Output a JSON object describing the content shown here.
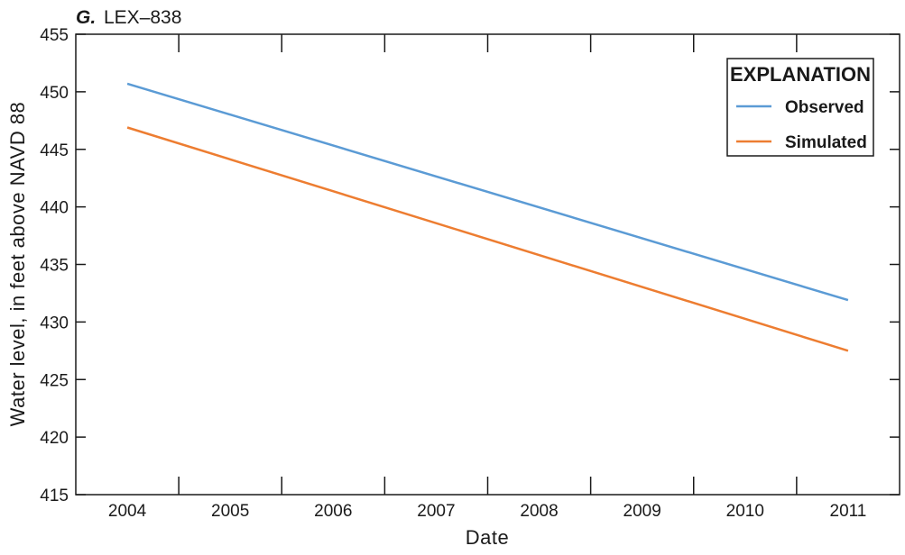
{
  "chart_data": {
    "type": "line",
    "panel_letter": "G.",
    "title": "LEX–838",
    "xlabel": "Date",
    "ylabel": "Water level, in feet above NAVD 88",
    "x_ticks": [
      "2004",
      "2005",
      "2006",
      "2007",
      "2008",
      "2009",
      "2010",
      "2011"
    ],
    "xlim": [
      "2003-07",
      "2011-07"
    ],
    "ylim": [
      415,
      455
    ],
    "y_ticks": [
      415,
      420,
      425,
      430,
      435,
      440,
      445,
      450,
      455
    ],
    "grid": false,
    "legend": {
      "title": "EXPLANATION",
      "position": "top-right"
    },
    "series": [
      {
        "name": "Observed",
        "color": "#5b9bd5",
        "x": [
          "2004-01",
          "2011-01"
        ],
        "y": [
          450.7,
          431.9
        ]
      },
      {
        "name": "Simulated",
        "color": "#ed7d31",
        "x": [
          "2004-01",
          "2011-01"
        ],
        "y": [
          446.9,
          427.5
        ]
      }
    ]
  }
}
